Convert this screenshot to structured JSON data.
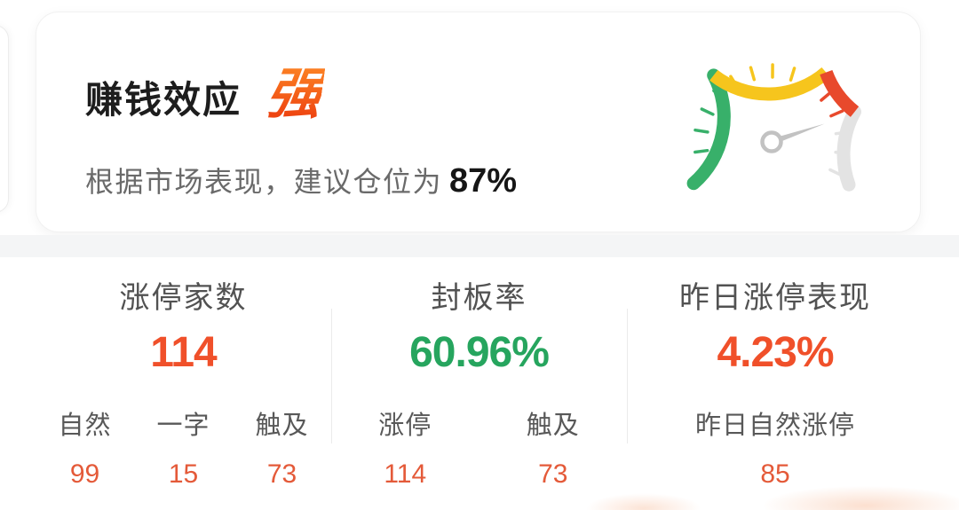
{
  "hero_card": {
    "title": "赚钱效应",
    "rating": "强",
    "subtitle_prefix": "根据市场表现，建议仓位为",
    "suggested_position": "87%",
    "gauge": {
      "segments": [
        {
          "name": "green",
          "color": "#38b06a",
          "from": 208,
          "to": 131
        },
        {
          "name": "yellow",
          "color": "#f6c51d",
          "from": 131,
          "to": 52
        },
        {
          "name": "red",
          "color": "#e8492c",
          "from": 52,
          "to": 20
        },
        {
          "name": "gray",
          "color": "#e3e3e3",
          "from": 20,
          "to": -29
        }
      ],
      "ticks": {
        "start": 204,
        "end": -25.5,
        "count": 15
      },
      "needle_angle_deg": 19,
      "needle_color": "#c2c2c2"
    }
  },
  "stats": {
    "columns": [
      {
        "title": "涨停家数",
        "value": "114",
        "value_color": "#f0502a",
        "substats": [
          {
            "label": "自然",
            "value": "99"
          },
          {
            "label": "一字",
            "value": "15"
          },
          {
            "label": "触及",
            "value": "73"
          }
        ]
      },
      {
        "title": "封板率",
        "value": "60.96%",
        "value_color": "#26a55e",
        "substats": [
          {
            "label": "涨停",
            "value": "114"
          },
          {
            "label": "触及",
            "value": "73"
          }
        ]
      },
      {
        "title": "昨日涨停表现",
        "value": "4.23%",
        "value_color": "#f0502a",
        "substats": [
          {
            "label": "昨日自然涨停",
            "value": "85"
          }
        ]
      }
    ]
  },
  "colors": {
    "accent_orange": "#f0502a",
    "sub_value_orange": "#e45a39",
    "value_green": "#26a55e",
    "gauge_green": "#38b06a",
    "gauge_yellow": "#f6c51d",
    "gauge_red": "#e8492c",
    "gauge_gray": "#e3e3e3",
    "title_text": "#1d1d1d",
    "subtitle_text": "#6a6a6a"
  }
}
